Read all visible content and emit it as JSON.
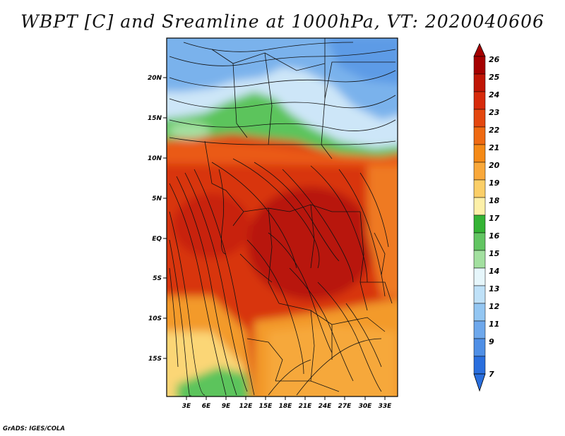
{
  "title": "WBPT [C] and Sreamline at 1000hPa, VT: 2020040606",
  "footer": "GrADS: IGES/COLA",
  "map": {
    "lat_ticks": [
      "20N",
      "15N",
      "10N",
      "5N",
      "EQ",
      "5S",
      "10S",
      "15S"
    ],
    "lon_ticks": [
      "3E",
      "6E",
      "9E",
      "12E",
      "15E",
      "18E",
      "21E",
      "24E",
      "27E",
      "30E",
      "33E"
    ]
  },
  "colorbar": {
    "labels": [
      "26",
      "25",
      "24",
      "23",
      "22",
      "21",
      "20",
      "19",
      "18",
      "17",
      "16",
      "15",
      "14",
      "13",
      "12",
      "11",
      "9",
      "7"
    ],
    "colors": [
      "#a50000",
      "#c01505",
      "#d72a0b",
      "#e4470f",
      "#ef6a12",
      "#f58a16",
      "#f9a83a",
      "#fbcf68",
      "#fdf0a8",
      "#34b334",
      "#62c562",
      "#a3e0a0",
      "#e6f6fb",
      "#bfe1f8",
      "#93c6f2",
      "#6ea8ec",
      "#4f8fe6",
      "#2a6fde"
    ],
    "top_color": "#a50000",
    "bottom_color": "#2a6fde"
  },
  "colors": {
    "cool_blue": "#7ab2ec",
    "light_blue": "#cde6f8",
    "green": "#5cc45c",
    "yellow": "#fbd676",
    "orange": "#f39a2c",
    "red": "#d8340d",
    "dark_red": "#b8160b"
  }
}
